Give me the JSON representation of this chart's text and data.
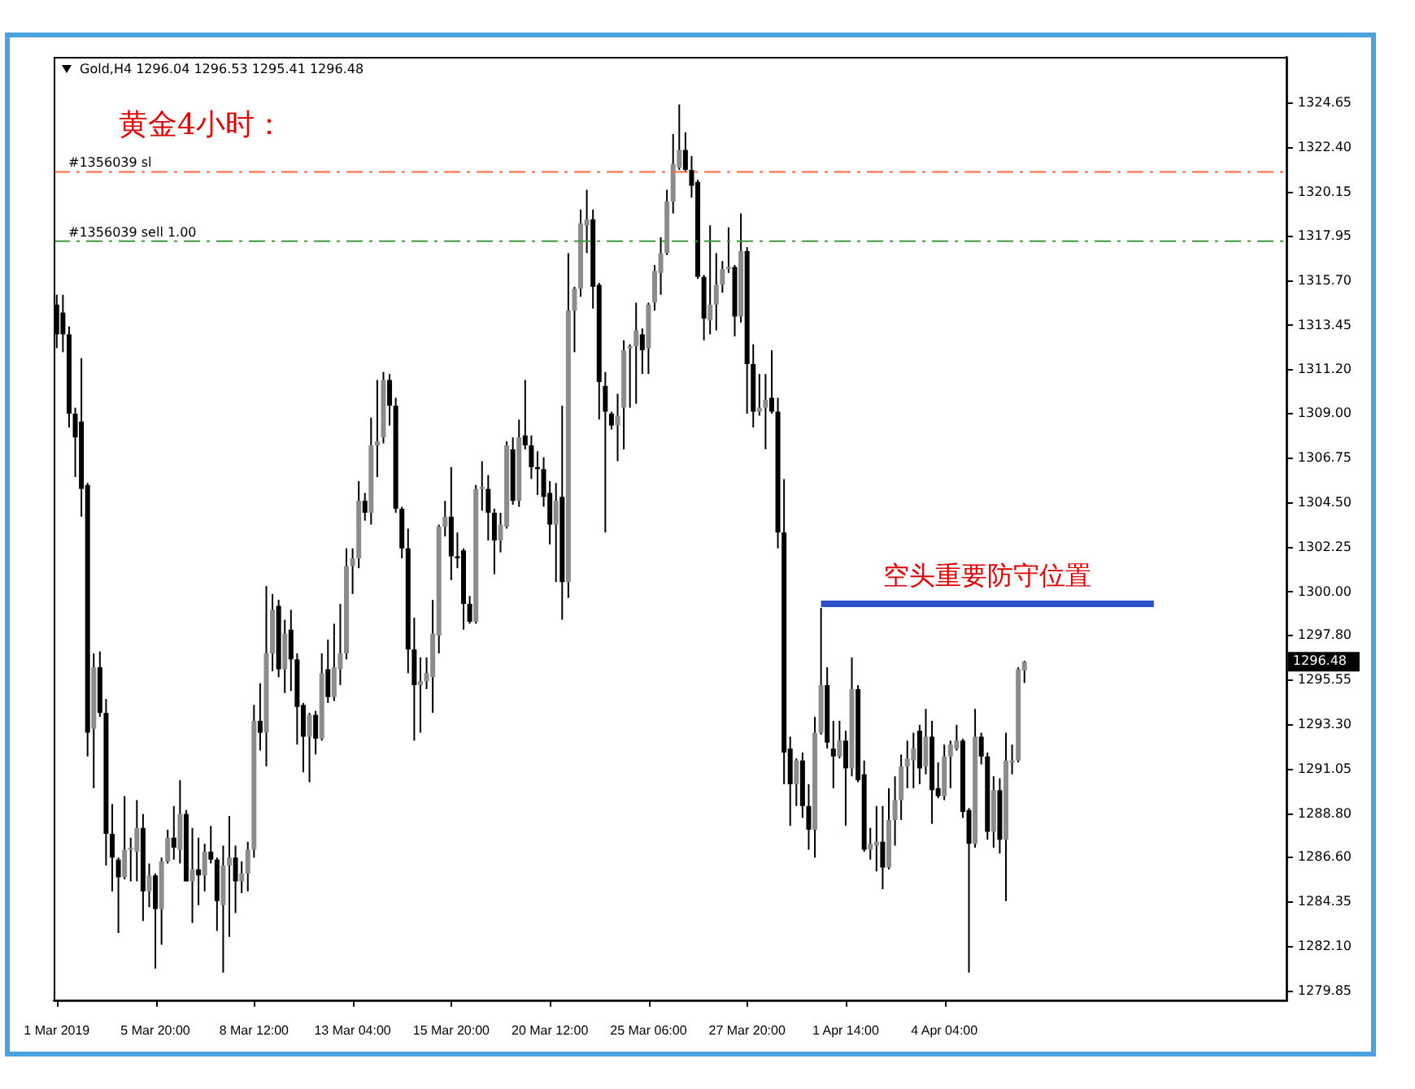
{
  "chart_data": {
    "type": "candlestick",
    "title": "Gold,H4 1296.04 1296.53 1295.41 1296.48",
    "subtitle": "黄金4小时：",
    "categories": [
      "1 Mar 2019",
      null,
      null,
      null,
      null,
      null,
      null,
      null,
      null,
      null,
      null,
      null,
      null,
      null,
      null,
      null,
      "5 Mar 20:00",
      null,
      null,
      null,
      null,
      null,
      null,
      null,
      null,
      null,
      null,
      null,
      null,
      null,
      null,
      null,
      "8 Mar 12:00",
      null,
      null,
      null,
      null,
      null,
      null,
      null,
      null,
      null,
      null,
      null,
      null,
      null,
      null,
      null,
      "13 Mar 04:00",
      null,
      null,
      null,
      null,
      null,
      null,
      null,
      null,
      null,
      null,
      null,
      null,
      null,
      null,
      null,
      "15 Mar 20:00",
      null,
      null,
      null,
      null,
      null,
      null,
      null,
      null,
      null,
      null,
      null,
      null,
      null,
      null,
      null,
      "20 Mar 12:00",
      null,
      null,
      null,
      null,
      null,
      null,
      null,
      null,
      null,
      null,
      null,
      null,
      null,
      null,
      null,
      "25 Mar 06:00",
      null,
      null,
      null,
      null,
      null,
      null,
      null,
      null,
      null,
      null,
      null,
      null,
      null,
      null,
      null,
      "27 Mar 20:00",
      null,
      null,
      null,
      null,
      null,
      null,
      null,
      null,
      null,
      null,
      null,
      null,
      null,
      null,
      null,
      "1 Apr 14:00",
      null,
      null,
      null,
      null,
      null,
      null,
      null,
      null,
      null,
      null,
      null,
      null,
      null,
      null,
      null,
      "4 Apr 04:00",
      null,
      null,
      null,
      null,
      null,
      null,
      null,
      null,
      null,
      null,
      null,
      null,
      null,
      null,
      null,
      null,
      null,
      null,
      null,
      null,
      null,
      null,
      null,
      null,
      null,
      null,
      null,
      null,
      null,
      null,
      null,
      null,
      null,
      null,
      null,
      null,
      null,
      null,
      null,
      null,
      null,
      null,
      null,
      null,
      null,
      null,
      null,
      null,
      null,
      null,
      null,
      null,
      null,
      null,
      null
    ],
    "ohlc": [
      [
        1314.5,
        1315.0,
        1312.3,
        1313.0
      ],
      [
        1314.1,
        1315.0,
        1312.1,
        1313.0
      ],
      [
        1313.0,
        1313.4,
        1308.3,
        1309.0
      ],
      [
        1309.0,
        1309.3,
        1305.8,
        1307.8
      ],
      [
        1308.6,
        1311.8,
        1303.8,
        1305.2
      ],
      [
        1305.4,
        1305.5,
        1291.7,
        1292.9
      ],
      [
        1293.1,
        1296.9,
        1290.1,
        1296.2
      ],
      [
        1296.2,
        1297.0,
        1293.7,
        1293.9
      ],
      [
        1293.9,
        1294.6,
        1286.2,
        1287.8
      ],
      [
        1287.8,
        1289.3,
        1284.9,
        1286.6
      ],
      [
        1286.5,
        1286.6,
        1282.8,
        1285.6
      ],
      [
        1285.6,
        1289.7,
        1285.5,
        1287.0
      ],
      [
        1287.0,
        1287.6,
        1285.4,
        1287.1
      ],
      [
        1286.9,
        1289.5,
        1285.4,
        1288.1
      ],
      [
        1288.1,
        1288.8,
        1283.4,
        1284.9
      ],
      [
        1284.9,
        1286.3,
        1284.1,
        1285.7
      ],
      [
        1285.7,
        1285.8,
        1281.0,
        1284.0
      ],
      [
        1284.0,
        1286.6,
        1282.2,
        1286.4
      ],
      [
        1286.4,
        1288.0,
        1286.3,
        1287.6
      ],
      [
        1287.6,
        1289.2,
        1286.5,
        1287.1
      ],
      [
        1287.0,
        1290.5,
        1286.3,
        1288.8
      ],
      [
        1288.8,
        1289.0,
        1285.4,
        1285.4
      ],
      [
        1285.4,
        1288.1,
        1283.3,
        1286.0
      ],
      [
        1286.0,
        1287.6,
        1284.2,
        1285.7
      ],
      [
        1285.7,
        1287.3,
        1284.9,
        1286.9
      ],
      [
        1286.9,
        1288.2,
        1286.3,
        1286.5
      ],
      [
        1286.5,
        1286.6,
        1282.9,
        1284.4
      ],
      [
        1284.2,
        1287.2,
        1280.8,
        1286.2
      ],
      [
        1286.2,
        1288.7,
        1282.6,
        1286.6
      ],
      [
        1286.6,
        1287.2,
        1283.8,
        1285.4
      ],
      [
        1285.4,
        1286.4,
        1284.8,
        1285.8
      ],
      [
        1285.8,
        1287.4,
        1284.9,
        1287.0
      ],
      [
        1287.0,
        1294.3,
        1286.6,
        1293.5
      ],
      [
        1293.5,
        1295.4,
        1292.0,
        1292.9
      ],
      [
        1292.9,
        1300.3,
        1291.2,
        1296.9
      ],
      [
        1296.9,
        1299.9,
        1296.0,
        1299.1
      ],
      [
        1299.3,
        1299.6,
        1295.7,
        1296.1
      ],
      [
        1296.1,
        1298.6,
        1294.9,
        1297.9
      ],
      [
        1298.1,
        1299.1,
        1295.0,
        1296.6
      ],
      [
        1296.6,
        1296.9,
        1292.3,
        1294.2
      ],
      [
        1294.3,
        1294.4,
        1290.9,
        1292.7
      ],
      [
        1292.7,
        1293.9,
        1290.4,
        1293.8
      ],
      [
        1293.8,
        1294.0,
        1291.8,
        1292.6
      ],
      [
        1292.6,
        1296.9,
        1292.5,
        1295.9
      ],
      [
        1296.1,
        1297.6,
        1294.4,
        1294.7
      ],
      [
        1294.7,
        1298.4,
        1294.5,
        1296.2
      ],
      [
        1296.1,
        1299.4,
        1295.3,
        1296.9
      ],
      [
        1296.9,
        1302.2,
        1296.6,
        1301.3
      ],
      [
        1301.3,
        1302.2,
        1299.9,
        1301.7
      ],
      [
        1301.7,
        1305.6,
        1301.2,
        1304.6
      ],
      [
        1304.6,
        1305.0,
        1303.6,
        1304.0
      ],
      [
        1304.0,
        1308.8,
        1303.4,
        1307.4
      ],
      [
        1307.4,
        1310.7,
        1305.8,
        1307.6
      ],
      [
        1307.8,
        1311.1,
        1307.5,
        1310.7
      ],
      [
        1310.7,
        1311.0,
        1308.4,
        1309.4
      ],
      [
        1309.4,
        1309.8,
        1304.0,
        1304.2
      ],
      [
        1304.2,
        1304.3,
        1301.7,
        1302.2
      ],
      [
        1302.2,
        1303.2,
        1295.9,
        1297.1
      ],
      [
        1297.1,
        1298.7,
        1292.5,
        1295.3
      ],
      [
        1295.3,
        1296.7,
        1292.9,
        1295.5
      ],
      [
        1295.5,
        1296.7,
        1295.1,
        1295.9
      ],
      [
        1295.7,
        1299.6,
        1293.9,
        1297.9
      ],
      [
        1297.8,
        1303.4,
        1296.9,
        1303.3
      ],
      [
        1303.3,
        1304.6,
        1302.8,
        1303.8
      ],
      [
        1303.8,
        1306.3,
        1300.6,
        1301.8
      ],
      [
        1301.8,
        1303.0,
        1301.2,
        1301.7
      ],
      [
        1302.1,
        1302.2,
        1298.1,
        1299.4
      ],
      [
        1299.4,
        1299.8,
        1298.4,
        1298.5
      ],
      [
        1298.5,
        1305.4,
        1298.4,
        1305.2
      ],
      [
        1305.2,
        1306.6,
        1304.1,
        1305.3
      ],
      [
        1305.2,
        1305.9,
        1302.6,
        1304.0
      ],
      [
        1304.0,
        1304.2,
        1300.9,
        1302.6
      ],
      [
        1302.6,
        1304.0,
        1302.0,
        1303.4
      ],
      [
        1303.3,
        1307.6,
        1303.2,
        1307.4
      ],
      [
        1307.2,
        1307.8,
        1304.4,
        1304.6
      ],
      [
        1304.6,
        1308.7,
        1304.3,
        1307.8
      ],
      [
        1307.9,
        1310.7,
        1307.2,
        1307.4
      ],
      [
        1307.4,
        1307.9,
        1305.7,
        1306.3
      ],
      [
        1306.3,
        1307.1,
        1304.9,
        1306.2
      ],
      [
        1306.2,
        1306.8,
        1304.3,
        1304.8
      ],
      [
        1305.0,
        1305.6,
        1302.4,
        1303.4
      ],
      [
        1303.4,
        1305.5,
        1300.5,
        1304.6
      ],
      [
        1304.8,
        1309.4,
        1298.6,
        1300.5
      ],
      [
        1300.5,
        1317.1,
        1299.7,
        1314.2
      ],
      [
        1314.2,
        1315.4,
        1312.1,
        1315.3
      ],
      [
        1315.3,
        1319.3,
        1314.9,
        1318.6
      ],
      [
        1318.5,
        1320.3,
        1317.1,
        1318.8
      ],
      [
        1318.8,
        1319.3,
        1314.3,
        1315.4
      ],
      [
        1315.5,
        1315.6,
        1308.7,
        1310.6
      ],
      [
        1310.4,
        1311.1,
        1303.0,
        1309.1
      ],
      [
        1309.0,
        1309.1,
        1308.2,
        1308.4
      ],
      [
        1308.4,
        1310.0,
        1306.6,
        1308.9
      ],
      [
        1309.3,
        1312.7,
        1307.2,
        1312.2
      ],
      [
        1312.3,
        1312.5,
        1309.3,
        1312.4
      ],
      [
        1312.4,
        1314.6,
        1309.5,
        1313.2
      ],
      [
        1313.0,
        1313.3,
        1311.0,
        1312.2
      ],
      [
        1312.3,
        1314.6,
        1311.0,
        1314.5
      ],
      [
        1314.6,
        1316.5,
        1314.2,
        1316.2
      ],
      [
        1316.1,
        1317.9,
        1315.0,
        1317.1
      ],
      [
        1317.1,
        1320.3,
        1317.0,
        1319.7
      ],
      [
        1319.7,
        1323.1,
        1319.1,
        1321.6
      ],
      [
        1321.4,
        1324.6,
        1321.3,
        1322.3
      ],
      [
        1322.3,
        1323.2,
        1321.2,
        1321.3
      ],
      [
        1321.3,
        1322.0,
        1319.9,
        1320.5
      ],
      [
        1320.7,
        1320.8,
        1315.8,
        1315.9
      ],
      [
        1315.9,
        1316.0,
        1312.7,
        1313.8
      ],
      [
        1313.7,
        1318.5,
        1313.0,
        1314.5
      ],
      [
        1314.5,
        1317.1,
        1313.2,
        1315.5
      ],
      [
        1315.5,
        1316.7,
        1315.1,
        1316.3
      ],
      [
        1316.3,
        1318.4,
        1316.1,
        1316.4
      ],
      [
        1316.4,
        1316.5,
        1312.9,
        1313.9
      ],
      [
        1313.9,
        1319.1,
        1313.6,
        1317.2
      ],
      [
        1317.2,
        1317.4,
        1309.0,
        1311.5
      ],
      [
        1311.5,
        1312.5,
        1308.3,
        1309.1
      ],
      [
        1309.1,
        1311.0,
        1308.9,
        1309.3
      ],
      [
        1309.3,
        1311.0,
        1307.2,
        1309.7
      ],
      [
        1309.8,
        1312.2,
        1309.0,
        1309.1
      ],
      [
        1309.1,
        1309.8,
        1302.2,
        1303.0
      ],
      [
        1303.0,
        1305.7,
        1290.3,
        1291.9
      ],
      [
        1292.1,
        1292.7,
        1288.2,
        1290.3
      ],
      [
        1290.3,
        1291.6,
        1289.2,
        1291.5
      ],
      [
        1291.5,
        1291.9,
        1288.6,
        1289.2
      ],
      [
        1289.2,
        1290.3,
        1287.0,
        1288.0
      ],
      [
        1288.0,
        1293.7,
        1286.6,
        1292.9
      ],
      [
        1292.9,
        1299.2,
        1292.8,
        1295.3
      ],
      [
        1295.3,
        1296.2,
        1292.1,
        1292.4
      ],
      [
        1292.1,
        1293.5,
        1290.1,
        1291.7
      ],
      [
        1291.7,
        1293.5,
        1291.6,
        1292.5
      ],
      [
        1292.5,
        1293.0,
        1288.2,
        1291.1
      ],
      [
        1291.1,
        1296.7,
        1290.7,
        1295.1
      ],
      [
        1295.1,
        1295.3,
        1290.4,
        1290.5
      ],
      [
        1290.8,
        1291.5,
        1286.9,
        1287.0
      ],
      [
        1287.0,
        1288.1,
        1286.5,
        1287.3
      ],
      [
        1287.2,
        1289.2,
        1285.9,
        1287.4
      ],
      [
        1287.4,
        1289.2,
        1285.0,
        1286.1
      ],
      [
        1286.1,
        1290.1,
        1286.0,
        1288.5
      ],
      [
        1288.5,
        1290.7,
        1287.2,
        1289.5
      ],
      [
        1289.5,
        1291.8,
        1288.5,
        1291.2
      ],
      [
        1291.2,
        1292.5,
        1290.1,
        1291.6
      ],
      [
        1291.5,
        1292.9,
        1290.1,
        1292.1
      ],
      [
        1293.0,
        1293.3,
        1290.3,
        1291.1
      ],
      [
        1291.2,
        1294.1,
        1290.8,
        1292.7
      ],
      [
        1292.7,
        1293.5,
        1288.3,
        1290.0
      ],
      [
        1290.1,
        1291.4,
        1289.6,
        1289.7
      ],
      [
        1289.7,
        1292.3,
        1289.5,
        1291.7
      ],
      [
        1291.7,
        1292.5,
        1290.1,
        1292.3
      ],
      [
        1292.1,
        1293.3,
        1292.0,
        1292.5
      ],
      [
        1292.5,
        1292.6,
        1288.6,
        1288.9
      ],
      [
        1289.0,
        1289.1,
        1280.8,
        1287.3
      ],
      [
        1287.3,
        1294.1,
        1287.1,
        1292.7
      ],
      [
        1292.7,
        1292.9,
        1291.3,
        1291.7
      ],
      [
        1291.7,
        1291.9,
        1287.5,
        1287.9
      ],
      [
        1287.9,
        1290.7,
        1287.1,
        1290.0
      ],
      [
        1290.0,
        1290.6,
        1286.8,
        1287.5
      ],
      [
        1287.5,
        1292.9,
        1284.4,
        1291.5
      ],
      [
        1291.4,
        1292.3,
        1290.8,
        1291.5
      ],
      [
        1291.5,
        1296.2,
        1291.4,
        1296.1
      ],
      [
        1296.04,
        1296.53,
        1295.41,
        1296.48
      ],
      null,
      null,
      null,
      null,
      null,
      null,
      null,
      null,
      null,
      null,
      null,
      null,
      null,
      null,
      null,
      null,
      null,
      null,
      null,
      null,
      null,
      null,
      null,
      null,
      null,
      null,
      null,
      null,
      null,
      null,
      null,
      null,
      null,
      null,
      null,
      null,
      null,
      null,
      null,
      null,
      null,
      null
    ],
    "series": [
      {
        "type": "line",
        "name": "空头重要防守位置",
        "color": "#2b50c8",
        "values": [
          null,
          null,
          null,
          null,
          null,
          null,
          null,
          null,
          null,
          null,
          null,
          null,
          null,
          null,
          null,
          null,
          null,
          null,
          null,
          null,
          null,
          null,
          null,
          null,
          null,
          null,
          null,
          null,
          null,
          null,
          null,
          null,
          null,
          null,
          null,
          null,
          null,
          null,
          null,
          null,
          null,
          null,
          null,
          null,
          null,
          null,
          null,
          null,
          null,
          null,
          null,
          null,
          null,
          null,
          null,
          null,
          null,
          null,
          null,
          null,
          null,
          null,
          null,
          null,
          null,
          null,
          null,
          null,
          null,
          null,
          null,
          null,
          null,
          null,
          null,
          null,
          null,
          null,
          null,
          null,
          null,
          null,
          null,
          null,
          null,
          null,
          null,
          null,
          null,
          null,
          null,
          null,
          null,
          null,
          null,
          null,
          null,
          null,
          null,
          null,
          null,
          null,
          null,
          null,
          null,
          null,
          null,
          null,
          null,
          null,
          null,
          null,
          null,
          null,
          null,
          null,
          null,
          null,
          null,
          null,
          null,
          null,
          null,
          null,
          1299.4,
          1299.4,
          1299.4,
          1299.4,
          1299.4,
          1299.4,
          1299.4,
          1299.4,
          1299.4,
          1299.4,
          1299.4,
          1299.4,
          1299.4,
          1299.4,
          1299.4,
          1299.4,
          1299.4,
          1299.4,
          1299.4,
          1299.4,
          1299.4,
          1299.4,
          1299.4,
          1299.4,
          1299.4,
          1299.4,
          1299.4,
          1299.4,
          1299.4,
          1299.4,
          1299.4,
          1299.4,
          1299.4,
          1299.4,
          1299.4,
          1299.4,
          1299.4,
          1299.4,
          1299.4,
          1299.4,
          1299.4,
          1299.4,
          1299.4,
          1299.4,
          1299.4,
          1299.4,
          1299.4,
          1299.4,
          1299.4,
          1299.4,
          1299.4,
          1299.4,
          1299.4,
          1299.4,
          1299.4,
          null,
          null,
          null,
          null,
          null,
          null,
          null,
          null,
          null,
          null,
          null,
          null,
          null,
          null,
          null,
          null,
          null,
          null,
          null,
          null,
          null
        ]
      }
    ],
    "ylim": [
      1279.4,
      1327.0
    ],
    "yticks": [
      1279.85,
      {
        "value": 1282.1,
        "label": "1282.10"
      },
      1284.35,
      {
        "value": 1286.6,
        "label": "1286.60"
      },
      {
        "value": 1288.8,
        "label": "1288.80"
      },
      1291.05,
      {
        "value": 1293.3,
        "label": "1293.30"
      },
      1295.55,
      {
        "value": 1297.8,
        "label": "1297.80"
      },
      {
        "value": 1300,
        "label": "1300.00"
      },
      1302.25,
      {
        "value": 1304.5,
        "label": "1304.50"
      },
      1306.75,
      {
        "value": 1309,
        "label": "1309.00"
      },
      {
        "value": 1311.2,
        "label": "1311.20"
      },
      1313.45,
      {
        "value": 1315.7,
        "label": "1315.70"
      },
      1317.95,
      1320.15,
      {
        "value": 1322.4,
        "label": "1322.40"
      },
      1324.65
    ],
    "ref_lines": [
      {
        "axis": "y",
        "value": 1321.2,
        "label": "#1356039 sl",
        "color": "#ff6a40",
        "line_style": "dashed"
      },
      {
        "axis": "y",
        "value": 1317.7,
        "label": "#1356039 sell 1.00",
        "color": "#3c9a3c",
        "line_style": "dashed"
      }
    ],
    "annotations": [
      "1296.48"
    ],
    "grid": false,
    "legend": false
  }
}
